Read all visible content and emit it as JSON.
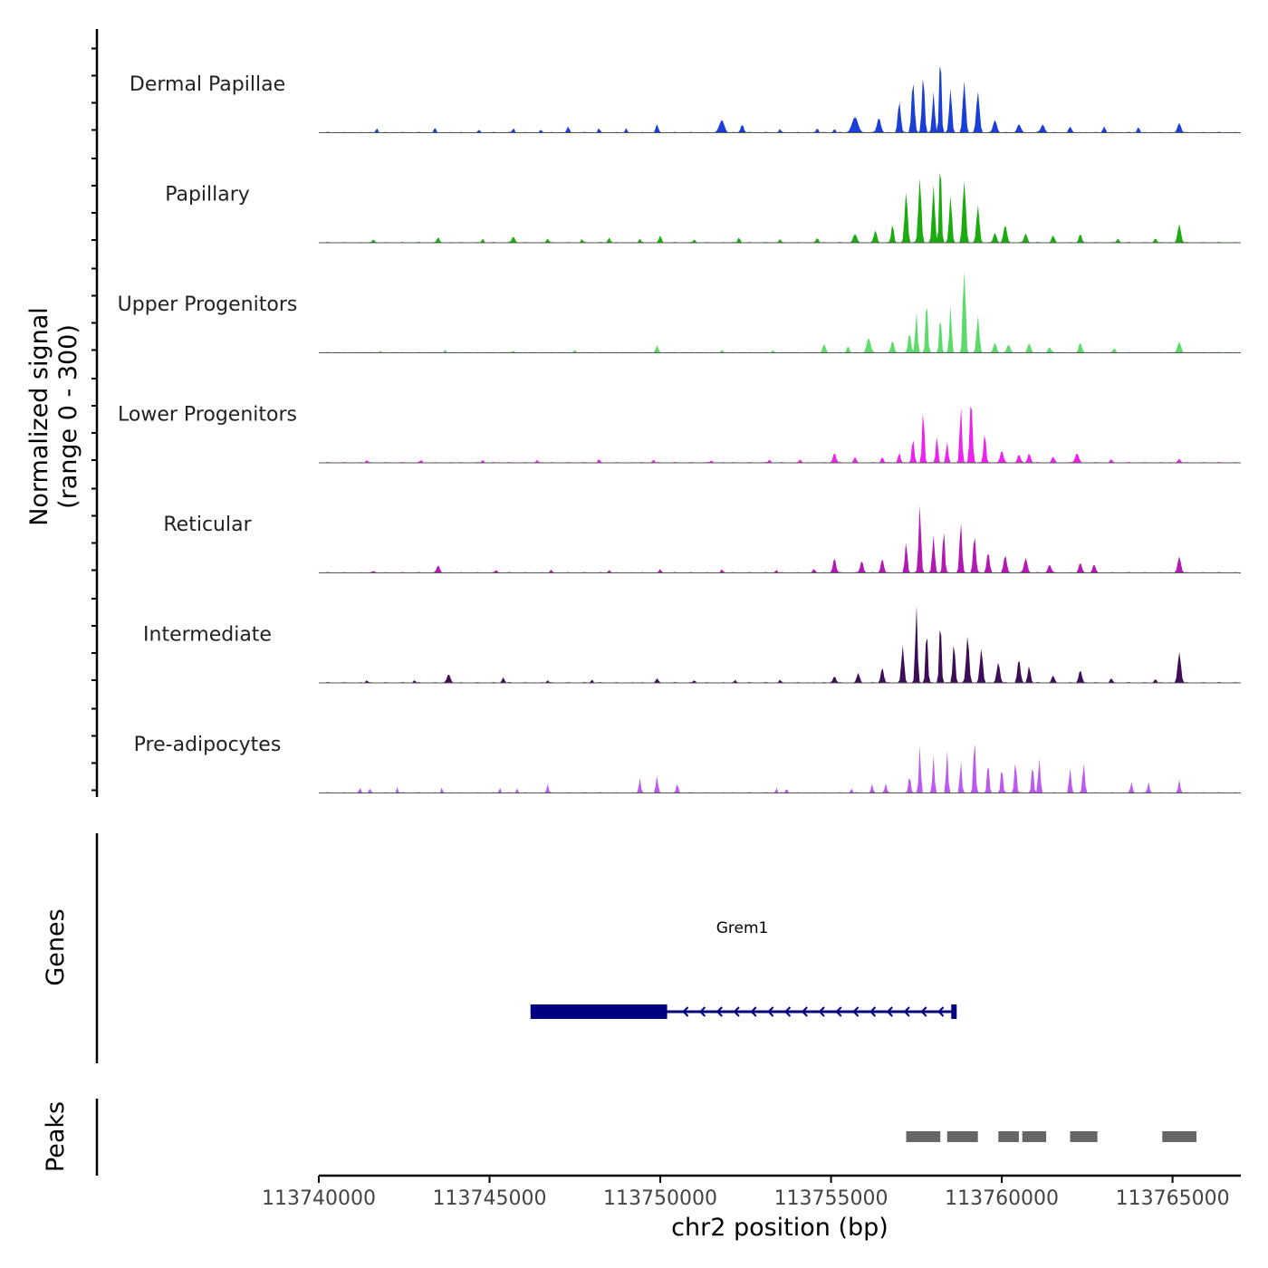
{
  "chart_data": {
    "type": "area",
    "title": "",
    "ylabel_line1": "Normalized signal",
    "ylabel_line2": "(range 0 - 300)",
    "xlabel": "chr2 position (bp)",
    "xlim": [
      113740000,
      113767000
    ],
    "ylim": [
      0,
      300
    ],
    "x_ticks": [
      113740000,
      113745000,
      113750000,
      113755000,
      113760000,
      113765000
    ],
    "x_tick_labels": [
      "113740000",
      "113745000",
      "113750000",
      "113755000",
      "113760000",
      "113765000"
    ],
    "series": [
      {
        "name": "Dermal Papillae",
        "color": "#1a3fd6",
        "peaks": [
          [
            113741700,
            6,
            80
          ],
          [
            113743400,
            7,
            80
          ],
          [
            113744700,
            5,
            60
          ],
          [
            113745700,
            7,
            80
          ],
          [
            113746500,
            5,
            60
          ],
          [
            113747300,
            8,
            100
          ],
          [
            113748200,
            6,
            80
          ],
          [
            113749000,
            6,
            80
          ],
          [
            113749900,
            12,
            100
          ],
          [
            113751800,
            18,
            200
          ],
          [
            113752400,
            12,
            120
          ],
          [
            113753500,
            5,
            80
          ],
          [
            113754600,
            7,
            80
          ],
          [
            113755100,
            6,
            80
          ],
          [
            113755700,
            22,
            250
          ],
          [
            113756400,
            22,
            150
          ],
          [
            113757000,
            45,
            120
          ],
          [
            113757400,
            75,
            120
          ],
          [
            113757700,
            85,
            110
          ],
          [
            113758000,
            60,
            100
          ],
          [
            113758200,
            120,
            90
          ],
          [
            113758500,
            65,
            110
          ],
          [
            113758900,
            75,
            120
          ],
          [
            113759300,
            60,
            130
          ],
          [
            113759800,
            18,
            150
          ],
          [
            113760500,
            12,
            150
          ],
          [
            113761200,
            12,
            150
          ],
          [
            113762000,
            8,
            120
          ],
          [
            113763000,
            9,
            100
          ],
          [
            113764000,
            8,
            100
          ],
          [
            113765200,
            14,
            140
          ]
        ]
      },
      {
        "name": "Papillary",
        "color": "#1aab0e",
        "peaks": [
          [
            113741600,
            5,
            80
          ],
          [
            113743500,
            8,
            100
          ],
          [
            113744800,
            6,
            80
          ],
          [
            113745700,
            9,
            120
          ],
          [
            113746700,
            6,
            100
          ],
          [
            113747700,
            5,
            80
          ],
          [
            113748500,
            7,
            100
          ],
          [
            113749400,
            6,
            80
          ],
          [
            113750000,
            10,
            100
          ],
          [
            113751000,
            5,
            80
          ],
          [
            113752300,
            7,
            100
          ],
          [
            113753500,
            5,
            80
          ],
          [
            113754600,
            7,
            100
          ],
          [
            113755700,
            12,
            150
          ],
          [
            113756300,
            18,
            120
          ],
          [
            113756800,
            28,
            100
          ],
          [
            113757200,
            75,
            120
          ],
          [
            113757600,
            95,
            120
          ],
          [
            113758000,
            85,
            110
          ],
          [
            113758200,
            125,
            90
          ],
          [
            113758500,
            70,
            110
          ],
          [
            113758900,
            90,
            130
          ],
          [
            113759300,
            55,
            120
          ],
          [
            113759800,
            14,
            130
          ],
          [
            113760100,
            25,
            140
          ],
          [
            113760700,
            14,
            120
          ],
          [
            113761500,
            10,
            120
          ],
          [
            113762300,
            12,
            120
          ],
          [
            113763400,
            6,
            100
          ],
          [
            113764500,
            6,
            100
          ],
          [
            113765200,
            27,
            130
          ]
        ]
      },
      {
        "name": "Upper Progenitors",
        "color": "#5cdb6c",
        "peaks": [
          [
            113741800,
            3,
            80
          ],
          [
            113743700,
            4,
            80
          ],
          [
            113745700,
            3,
            80
          ],
          [
            113747500,
            4,
            80
          ],
          [
            113749900,
            10,
            100
          ],
          [
            113751800,
            4,
            80
          ],
          [
            113753300,
            4,
            80
          ],
          [
            113754800,
            12,
            120
          ],
          [
            113755500,
            10,
            100
          ],
          [
            113756100,
            22,
            150
          ],
          [
            113756800,
            18,
            120
          ],
          [
            113757300,
            30,
            110
          ],
          [
            113757500,
            60,
            90
          ],
          [
            113757800,
            80,
            90
          ],
          [
            113758200,
            55,
            90
          ],
          [
            113758500,
            70,
            90
          ],
          [
            113758900,
            160,
            100
          ],
          [
            113759300,
            55,
            110
          ],
          [
            113759800,
            14,
            130
          ],
          [
            113760200,
            12,
            130
          ],
          [
            113760800,
            14,
            130
          ],
          [
            113761400,
            8,
            120
          ],
          [
            113762300,
            14,
            130
          ],
          [
            113763300,
            6,
            100
          ],
          [
            113765200,
            16,
            140
          ]
        ]
      },
      {
        "name": "Lower Progenitors",
        "color": "#ee22ee",
        "peaks": [
          [
            113741400,
            4,
            80
          ],
          [
            113743000,
            4,
            80
          ],
          [
            113744800,
            4,
            80
          ],
          [
            113746400,
            4,
            80
          ],
          [
            113748200,
            5,
            80
          ],
          [
            113749800,
            5,
            80
          ],
          [
            113751500,
            4,
            80
          ],
          [
            113753200,
            5,
            80
          ],
          [
            113754100,
            5,
            80
          ],
          [
            113755100,
            15,
            120
          ],
          [
            113755700,
            8,
            100
          ],
          [
            113756500,
            8,
            100
          ],
          [
            113757000,
            14,
            100
          ],
          [
            113757400,
            35,
            100
          ],
          [
            113757700,
            80,
            90
          ],
          [
            113758100,
            40,
            90
          ],
          [
            113758400,
            30,
            90
          ],
          [
            113758800,
            85,
            90
          ],
          [
            113759100,
            95,
            110
          ],
          [
            113759500,
            45,
            100
          ],
          [
            113760000,
            18,
            130
          ],
          [
            113760500,
            12,
            120
          ],
          [
            113760800,
            14,
            120
          ],
          [
            113761500,
            8,
            120
          ],
          [
            113762200,
            14,
            150
          ],
          [
            113763200,
            5,
            80
          ],
          [
            113765200,
            6,
            100
          ]
        ]
      },
      {
        "name": "Reticular",
        "color": "#b219b2",
        "peaks": [
          [
            113741600,
            3,
            80
          ],
          [
            113743500,
            11,
            120
          ],
          [
            113745200,
            4,
            80
          ],
          [
            113746800,
            4,
            80
          ],
          [
            113748500,
            4,
            80
          ],
          [
            113750000,
            5,
            80
          ],
          [
            113751800,
            5,
            80
          ],
          [
            113753400,
            4,
            80
          ],
          [
            113754500,
            5,
            100
          ],
          [
            113755100,
            22,
            120
          ],
          [
            113755900,
            18,
            120
          ],
          [
            113756500,
            20,
            120
          ],
          [
            113757200,
            45,
            100
          ],
          [
            113757600,
            100,
            100
          ],
          [
            113758000,
            55,
            100
          ],
          [
            113758300,
            65,
            90
          ],
          [
            113758800,
            75,
            100
          ],
          [
            113759200,
            55,
            110
          ],
          [
            113759600,
            30,
            120
          ],
          [
            113760100,
            25,
            130
          ],
          [
            113760700,
            22,
            130
          ],
          [
            113761400,
            12,
            130
          ],
          [
            113762300,
            14,
            130
          ],
          [
            113762700,
            12,
            120
          ],
          [
            113765200,
            24,
            130
          ]
        ]
      },
      {
        "name": "Intermediate",
        "color": "#3d0d57",
        "peaks": [
          [
            113741400,
            4,
            80
          ],
          [
            113742800,
            4,
            80
          ],
          [
            113743800,
            13,
            130
          ],
          [
            113745400,
            8,
            100
          ],
          [
            113746700,
            4,
            80
          ],
          [
            113748000,
            5,
            80
          ],
          [
            113749900,
            6,
            100
          ],
          [
            113751000,
            4,
            80
          ],
          [
            113752200,
            4,
            80
          ],
          [
            113753500,
            4,
            80
          ],
          [
            113755100,
            10,
            120
          ],
          [
            113755800,
            14,
            120
          ],
          [
            113756500,
            22,
            120
          ],
          [
            113757100,
            55,
            110
          ],
          [
            113757500,
            115,
            90
          ],
          [
            113757800,
            80,
            90
          ],
          [
            113758200,
            95,
            90
          ],
          [
            113758600,
            60,
            100
          ],
          [
            113759000,
            70,
            120
          ],
          [
            113759400,
            50,
            120
          ],
          [
            113759900,
            30,
            130
          ],
          [
            113760500,
            35,
            120
          ],
          [
            113760800,
            25,
            110
          ],
          [
            113761500,
            10,
            120
          ],
          [
            113762300,
            18,
            130
          ],
          [
            113763200,
            6,
            100
          ],
          [
            113764500,
            5,
            100
          ],
          [
            113765200,
            45,
            130
          ]
        ]
      },
      {
        "name": "Pre-adipocytes",
        "color": "#bb59f0",
        "peaks": [
          [
            113741200,
            8,
            60
          ],
          [
            113741500,
            7,
            60
          ],
          [
            113742300,
            9,
            60
          ],
          [
            113743600,
            8,
            60
          ],
          [
            113745300,
            8,
            60
          ],
          [
            113745800,
            7,
            60
          ],
          [
            113746700,
            14,
            70
          ],
          [
            113749400,
            22,
            80
          ],
          [
            113749900,
            24,
            90
          ],
          [
            113750500,
            14,
            80
          ],
          [
            113753400,
            8,
            60
          ],
          [
            113753700,
            8,
            60
          ],
          [
            113755600,
            8,
            60
          ],
          [
            113756200,
            12,
            80
          ],
          [
            113756600,
            14,
            80
          ],
          [
            113757300,
            26,
            90
          ],
          [
            113757600,
            70,
            80
          ],
          [
            113758000,
            55,
            80
          ],
          [
            113758400,
            62,
            80
          ],
          [
            113758800,
            48,
            80
          ],
          [
            113759200,
            80,
            90
          ],
          [
            113759600,
            45,
            90
          ],
          [
            113760000,
            38,
            90
          ],
          [
            113760400,
            48,
            90
          ],
          [
            113760900,
            42,
            90
          ],
          [
            113761100,
            50,
            90
          ],
          [
            113762000,
            36,
            90
          ],
          [
            113762400,
            45,
            90
          ],
          [
            113763800,
            16,
            80
          ],
          [
            113764300,
            16,
            80
          ],
          [
            113765200,
            20,
            80
          ]
        ]
      }
    ],
    "genes_label": "Genes",
    "genes": [
      {
        "name": "Grem1",
        "start": 113746200,
        "end": 113758600,
        "thick_start": 113746200,
        "thick_end": 113750200,
        "strand": "-",
        "color": "#000080"
      }
    ],
    "peaks_label": "Peaks",
    "peak_regions": [
      [
        113757200,
        113758200
      ],
      [
        113758400,
        113759300
      ],
      [
        113759900,
        113760500
      ],
      [
        113760600,
        113761300
      ],
      [
        113762000,
        113762800
      ],
      [
        113764700,
        113765700
      ]
    ],
    "peak_region_color": "#666666"
  }
}
